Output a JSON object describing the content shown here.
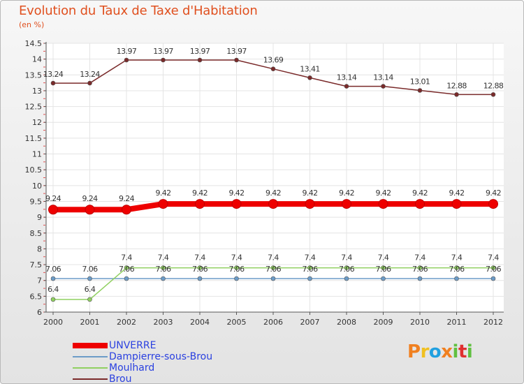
{
  "header": {
    "title": "Evolution du Taux de Taxe d'Habitation",
    "unit": "(en %)"
  },
  "brand": {
    "letters": [
      "P",
      "r",
      "o",
      "x",
      "i",
      "t",
      "i"
    ],
    "colors": [
      "#f08020",
      "#f0c020",
      "#20a0e0",
      "#f08020",
      "#60c040",
      "#e03030",
      "#60c040"
    ]
  },
  "chart_data": {
    "type": "line",
    "title": "Evolution du Taux de Taxe d'Habitation",
    "ylabel": "(en %)",
    "xlabel": "",
    "x": [
      "2000",
      "2001",
      "2002",
      "2003",
      "2004",
      "2005",
      "2006",
      "2007",
      "2008",
      "2009",
      "2010",
      "2011",
      "2012"
    ],
    "ylim": [
      6,
      14.5
    ],
    "yticks": [
      "6",
      "6.5",
      "7",
      "7.5",
      "8",
      "8.5",
      "9",
      "9.5",
      "10",
      "10.5",
      "11",
      "11.5",
      "12",
      "12.5",
      "13",
      "13.5",
      "14",
      "14.5"
    ],
    "grid": true,
    "legend_position": "bottom-left",
    "series": [
      {
        "name": "UNVERRE",
        "color": "#ee0000",
        "values": [
          9.24,
          9.24,
          9.24,
          9.42,
          9.42,
          9.42,
          9.42,
          9.42,
          9.42,
          9.42,
          9.42,
          9.42,
          9.42
        ],
        "labels": [
          "9.24",
          "9.24",
          "9.24",
          "9.42",
          "9.42",
          "9.42",
          "9.42",
          "9.42",
          "9.42",
          "9.42",
          "9.42",
          "9.42",
          "9.42"
        ]
      },
      {
        "name": "Dampierre-sous-Brou",
        "color": "#6c9cc8",
        "values": [
          7.06,
          7.06,
          7.06,
          7.06,
          7.06,
          7.06,
          7.06,
          7.06,
          7.06,
          7.06,
          7.06,
          7.06,
          7.06
        ],
        "labels": [
          "7.06",
          "7.06",
          "7.06",
          "7.06",
          "7.06",
          "7.06",
          "7.06",
          "7.06",
          "7.06",
          "7.06",
          "7.06",
          "7.06",
          "7.06"
        ]
      },
      {
        "name": "Moulhard",
        "color": "#90d060",
        "values": [
          6.4,
          6.4,
          7.4,
          7.4,
          7.4,
          7.4,
          7.4,
          7.4,
          7.4,
          7.4,
          7.4,
          7.4,
          7.4
        ],
        "labels": [
          "6.4",
          "6.4",
          "7.4",
          "7.4",
          "7.4",
          "7.4",
          "7.4",
          "7.4",
          "7.4",
          "7.4",
          "7.4",
          "7.4",
          "7.4"
        ]
      },
      {
        "name": "Brou",
        "color": "#7a2a2a",
        "values": [
          13.24,
          13.24,
          13.97,
          13.97,
          13.97,
          13.97,
          13.69,
          13.41,
          13.14,
          13.14,
          13.01,
          12.88,
          12.88
        ],
        "labels": [
          "13.24",
          "13.24",
          "13.97",
          "13.97",
          "13.97",
          "13.97",
          "13.69",
          "13.41",
          "13.14",
          "13.14",
          "13.01",
          "12.88",
          "12.88"
        ]
      }
    ]
  }
}
